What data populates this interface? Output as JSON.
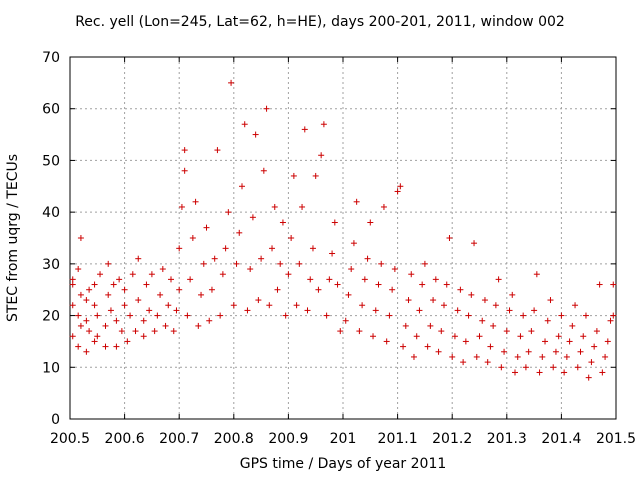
{
  "chart_data": {
    "type": "scatter",
    "title": "Rec. yell (Lon=245, Lat=62, h=HE), days 200-201, 2011, window 002",
    "xlabel": "GPS time / Days of year 2011",
    "ylabel": "STEC from uqrg / TECUs",
    "xlim": [
      200.5,
      201.5
    ],
    "ylim": [
      0,
      70
    ],
    "xticks": [
      "200.5",
      "200.6",
      "200.7",
      "200.8",
      "200.9",
      "201",
      "201.1",
      "201.2",
      "201.3",
      "201.4",
      "201.5"
    ],
    "yticks": [
      "0",
      "10",
      "20",
      "30",
      "40",
      "50",
      "60",
      "70"
    ],
    "grid": true,
    "marker": "plus",
    "color": "#cc0000",
    "series": [
      {
        "name": "",
        "points": [
          [
            200.505,
            16
          ],
          [
            200.505,
            22
          ],
          [
            200.505,
            26
          ],
          [
            200.505,
            27
          ],
          [
            200.515,
            14
          ],
          [
            200.515,
            20
          ],
          [
            200.515,
            29
          ],
          [
            200.52,
            35
          ],
          [
            200.52,
            24
          ],
          [
            200.52,
            18
          ],
          [
            200.53,
            13
          ],
          [
            200.53,
            19
          ],
          [
            200.53,
            23
          ],
          [
            200.535,
            17
          ],
          [
            200.535,
            25
          ],
          [
            200.545,
            15
          ],
          [
            200.545,
            22
          ],
          [
            200.545,
            26
          ],
          [
            200.55,
            16
          ],
          [
            200.55,
            20
          ],
          [
            200.555,
            28
          ],
          [
            200.565,
            14
          ],
          [
            200.565,
            18
          ],
          [
            200.57,
            24
          ],
          [
            200.57,
            30
          ],
          [
            200.575,
            21
          ],
          [
            200.58,
            26
          ],
          [
            200.585,
            14
          ],
          [
            200.585,
            19
          ],
          [
            200.59,
            27
          ],
          [
            200.595,
            17
          ],
          [
            200.6,
            22
          ],
          [
            200.6,
            25
          ],
          [
            200.605,
            15
          ],
          [
            200.61,
            20
          ],
          [
            200.615,
            28
          ],
          [
            200.62,
            17
          ],
          [
            200.625,
            23
          ],
          [
            200.625,
            31
          ],
          [
            200.635,
            16
          ],
          [
            200.635,
            19
          ],
          [
            200.64,
            26
          ],
          [
            200.645,
            21
          ],
          [
            200.65,
            28
          ],
          [
            200.655,
            17
          ],
          [
            200.66,
            20
          ],
          [
            200.665,
            24
          ],
          [
            200.67,
            29
          ],
          [
            200.675,
            18
          ],
          [
            200.68,
            22
          ],
          [
            200.685,
            27
          ],
          [
            200.69,
            17
          ],
          [
            200.695,
            21
          ],
          [
            200.7,
            25
          ],
          [
            200.7,
            33
          ],
          [
            200.705,
            41
          ],
          [
            200.71,
            48
          ],
          [
            200.71,
            52
          ],
          [
            200.715,
            20
          ],
          [
            200.72,
            27
          ],
          [
            200.725,
            35
          ],
          [
            200.73,
            42
          ],
          [
            200.735,
            18
          ],
          [
            200.74,
            24
          ],
          [
            200.745,
            30
          ],
          [
            200.75,
            37
          ],
          [
            200.755,
            19
          ],
          [
            200.76,
            25
          ],
          [
            200.765,
            31
          ],
          [
            200.77,
            52
          ],
          [
            200.775,
            20
          ],
          [
            200.78,
            28
          ],
          [
            200.785,
            33
          ],
          [
            200.79,
            40
          ],
          [
            200.795,
            65
          ],
          [
            200.8,
            22
          ],
          [
            200.805,
            30
          ],
          [
            200.81,
            36
          ],
          [
            200.815,
            45
          ],
          [
            200.82,
            57
          ],
          [
            200.825,
            21
          ],
          [
            200.83,
            29
          ],
          [
            200.835,
            39
          ],
          [
            200.84,
            55
          ],
          [
            200.845,
            23
          ],
          [
            200.85,
            31
          ],
          [
            200.855,
            48
          ],
          [
            200.86,
            60
          ],
          [
            200.865,
            22
          ],
          [
            200.87,
            33
          ],
          [
            200.875,
            41
          ],
          [
            200.88,
            25
          ],
          [
            200.885,
            30
          ],
          [
            200.89,
            38
          ],
          [
            200.895,
            20
          ],
          [
            200.9,
            28
          ],
          [
            200.905,
            35
          ],
          [
            200.91,
            47
          ],
          [
            200.915,
            22
          ],
          [
            200.92,
            30
          ],
          [
            200.925,
            41
          ],
          [
            200.93,
            56
          ],
          [
            200.935,
            21
          ],
          [
            200.94,
            27
          ],
          [
            200.945,
            33
          ],
          [
            200.95,
            47
          ],
          [
            200.955,
            25
          ],
          [
            200.96,
            51
          ],
          [
            200.965,
            57
          ],
          [
            200.97,
            20
          ],
          [
            200.975,
            27
          ],
          [
            200.98,
            32
          ],
          [
            200.985,
            38
          ],
          [
            200.99,
            26
          ],
          [
            200.995,
            17
          ],
          [
            201.005,
            19
          ],
          [
            201.01,
            24
          ],
          [
            201.015,
            29
          ],
          [
            201.02,
            34
          ],
          [
            201.025,
            42
          ],
          [
            201.03,
            17
          ],
          [
            201.035,
            22
          ],
          [
            201.04,
            27
          ],
          [
            201.045,
            31
          ],
          [
            201.05,
            38
          ],
          [
            201.055,
            16
          ],
          [
            201.06,
            21
          ],
          [
            201.065,
            26
          ],
          [
            201.07,
            30
          ],
          [
            201.075,
            41
          ],
          [
            201.08,
            15
          ],
          [
            201.085,
            20
          ],
          [
            201.09,
            25
          ],
          [
            201.095,
            29
          ],
          [
            201.1,
            44
          ],
          [
            201.105,
            45
          ],
          [
            201.11,
            14
          ],
          [
            201.115,
            18
          ],
          [
            201.12,
            23
          ],
          [
            201.125,
            28
          ],
          [
            201.13,
            12
          ],
          [
            201.135,
            16
          ],
          [
            201.14,
            21
          ],
          [
            201.145,
            26
          ],
          [
            201.15,
            30
          ],
          [
            201.155,
            14
          ],
          [
            201.16,
            18
          ],
          [
            201.165,
            23
          ],
          [
            201.17,
            27
          ],
          [
            201.175,
            13
          ],
          [
            201.18,
            17
          ],
          [
            201.185,
            22
          ],
          [
            201.19,
            26
          ],
          [
            201.195,
            35
          ],
          [
            201.2,
            12
          ],
          [
            201.205,
            16
          ],
          [
            201.21,
            21
          ],
          [
            201.215,
            25
          ],
          [
            201.22,
            11
          ],
          [
            201.225,
            15
          ],
          [
            201.23,
            20
          ],
          [
            201.235,
            24
          ],
          [
            201.24,
            34
          ],
          [
            201.245,
            12
          ],
          [
            201.25,
            16
          ],
          [
            201.255,
            19
          ],
          [
            201.26,
            23
          ],
          [
            201.265,
            11
          ],
          [
            201.27,
            14
          ],
          [
            201.275,
            18
          ],
          [
            201.28,
            22
          ],
          [
            201.285,
            27
          ],
          [
            201.29,
            10
          ],
          [
            201.295,
            13
          ],
          [
            201.3,
            17
          ],
          [
            201.305,
            21
          ],
          [
            201.31,
            24
          ],
          [
            201.315,
            9
          ],
          [
            201.32,
            12
          ],
          [
            201.325,
            16
          ],
          [
            201.33,
            20
          ],
          [
            201.335,
            10
          ],
          [
            201.34,
            13
          ],
          [
            201.345,
            17
          ],
          [
            201.35,
            21
          ],
          [
            201.355,
            28
          ],
          [
            201.36,
            9
          ],
          [
            201.365,
            12
          ],
          [
            201.37,
            15
          ],
          [
            201.375,
            19
          ],
          [
            201.38,
            23
          ],
          [
            201.385,
            10
          ],
          [
            201.39,
            13
          ],
          [
            201.395,
            16
          ],
          [
            201.4,
            20
          ],
          [
            201.405,
            9
          ],
          [
            201.41,
            12
          ],
          [
            201.415,
            15
          ],
          [
            201.42,
            18
          ],
          [
            201.425,
            22
          ],
          [
            201.43,
            10
          ],
          [
            201.435,
            13
          ],
          [
            201.44,
            16
          ],
          [
            201.445,
            20
          ],
          [
            201.45,
            8
          ],
          [
            201.455,
            11
          ],
          [
            201.46,
            14
          ],
          [
            201.465,
            17
          ],
          [
            201.47,
            26
          ],
          [
            201.475,
            9
          ],
          [
            201.48,
            12
          ],
          [
            201.485,
            15
          ],
          [
            201.49,
            19
          ],
          [
            201.495,
            20
          ],
          [
            201.495,
            26
          ]
        ]
      }
    ]
  }
}
